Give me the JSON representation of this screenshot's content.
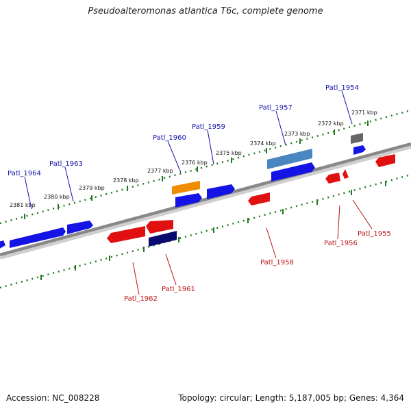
{
  "title": "Pseudoalteromonas atlantica T6c, complete genome",
  "footer": {
    "accession": "Accession: NC_008228",
    "stats": "Topology: circular; Length: 5,187,005 bp; Genes: 4,364"
  },
  "colors": {
    "backbone": "#888888",
    "tick": "#1f7a1f",
    "forward_label": "#1010aa",
    "reverse_label": "#bb1111",
    "gene_blue": "#1414e6",
    "gene_red": "#e01010",
    "gene_orange": "#f08c00",
    "gene_navy": "#0a0a6e",
    "gene_steel": "#4a86c0",
    "gene_gray": "#666666"
  },
  "scale_labels": [
    "2381 kbp",
    "2380 kbp",
    "2379 kbp",
    "2378 kbp",
    "2377 kbp",
    "2376 kbp",
    "2375 kbp",
    "2374 kbp",
    "2373 kbp",
    "2372 kbp",
    "2371 kbp"
  ],
  "forward_genes": [
    {
      "label": "Patl_1964"
    },
    {
      "label": "Patl_1963"
    },
    {
      "label": "Patl_1960"
    },
    {
      "label": "Patl_1959"
    },
    {
      "label": "Patl_1957"
    },
    {
      "label": "Patl_1954"
    }
  ],
  "reverse_genes": [
    {
      "label": "Patl_1962"
    },
    {
      "label": "Patl_1961"
    },
    {
      "label": "Patl_1958"
    },
    {
      "label": "Patl_1956"
    },
    {
      "label": "Patl_1955"
    }
  ]
}
